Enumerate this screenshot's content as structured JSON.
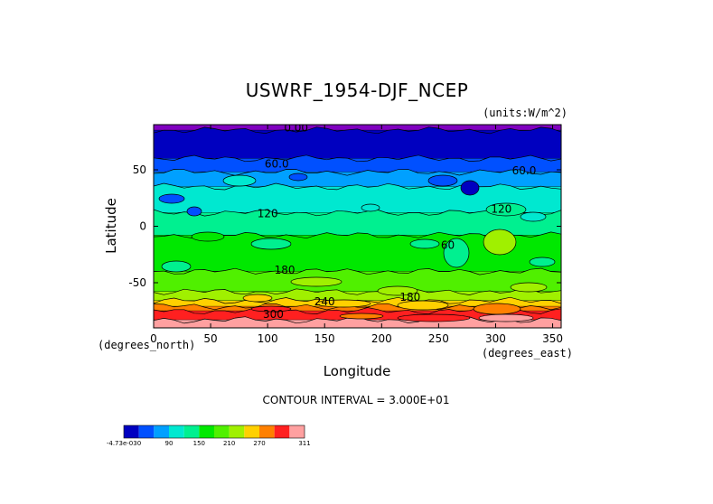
{
  "chart_data": {
    "type": "heatmap",
    "title": "USWRF_1954-DJF_NCEP",
    "units_label": "(units:W/m^2)",
    "xlabel": "Longitude",
    "ylabel": "Latitude",
    "x_unit_note": "(degrees_east)",
    "y_unit_note": "(degrees_north)",
    "xlim": [
      0,
      357.5
    ],
    "ylim": [
      -90,
      90
    ],
    "x_ticks": [
      0,
      50,
      100,
      150,
      200,
      250,
      300,
      350
    ],
    "y_ticks": [
      50,
      0,
      -50
    ],
    "contour_interval_text": "CONTOUR INTERVAL = 3.000E+01",
    "contour_labels": [
      {
        "text": "0.00",
        "lon": 125,
        "lat": 84
      },
      {
        "text": "60.0",
        "lon": 108,
        "lat": 52
      },
      {
        "text": "60.0",
        "lon": 325,
        "lat": 46
      },
      {
        "text": "120",
        "lon": 100,
        "lat": 8
      },
      {
        "text": "120",
        "lon": 305,
        "lat": 12
      },
      {
        "text": "60",
        "lon": 258,
        "lat": -20
      },
      {
        "text": "180",
        "lon": 115,
        "lat": -42
      },
      {
        "text": "180",
        "lon": 225,
        "lat": -66
      },
      {
        "text": "240",
        "lon": 150,
        "lat": -70
      },
      {
        "text": "300",
        "lon": 105,
        "lat": -81
      }
    ],
    "colorbar": {
      "levels": [
        "-4.73e-030",
        "",
        "",
        "90",
        "",
        "150",
        "",
        "210",
        "",
        "270",
        "",
        "311"
      ],
      "colors": [
        "#0000c0",
        "#0050ff",
        "#00a0ff",
        "#00e8d0",
        "#00f090",
        "#00e800",
        "#50f000",
        "#a0f000",
        "#ffd000",
        "#ff8000",
        "#ff2020",
        "#ffa0a0"
      ]
    },
    "bands": [
      {
        "lat_top": 90,
        "lat_bottom": 85,
        "color": "#8000c0",
        "value_range": "0"
      },
      {
        "lat_top": 85,
        "lat_bottom": 60,
        "color": "#0000c0",
        "value_range": "0-30"
      },
      {
        "lat_top": 60,
        "lat_bottom": 48,
        "color": "#0050ff",
        "value_range": "30-60"
      },
      {
        "lat_top": 48,
        "lat_bottom": 35,
        "color": "#00a0ff",
        "value_range": "60-90"
      },
      {
        "lat_top": 35,
        "lat_bottom": 12,
        "color": "#00e8d0",
        "value_range": "90-120"
      },
      {
        "lat_top": 12,
        "lat_bottom": -8,
        "color": "#00f090",
        "value_range": "120-150"
      },
      {
        "lat_top": -8,
        "lat_bottom": -40,
        "color": "#00e800",
        "value_range": "150-180"
      },
      {
        "lat_top": -40,
        "lat_bottom": -58,
        "color": "#50f000",
        "value_range": "180-210"
      },
      {
        "lat_top": -58,
        "lat_bottom": -66,
        "color": "#a0f000",
        "value_range": "210-240"
      },
      {
        "lat_top": -66,
        "lat_bottom": -71,
        "color": "#ffd000",
        "value_range": "240-270"
      },
      {
        "lat_top": -71,
        "lat_bottom": -75,
        "color": "#ff8000",
        "value_range": "270-300"
      },
      {
        "lat_top": -75,
        "lat_bottom": -83,
        "color": "#ff2020",
        "value_range": "300-311"
      },
      {
        "lat_top": -83,
        "lat_bottom": -90,
        "color": "#ffa0a0",
        "value_range": ">311"
      }
    ]
  }
}
